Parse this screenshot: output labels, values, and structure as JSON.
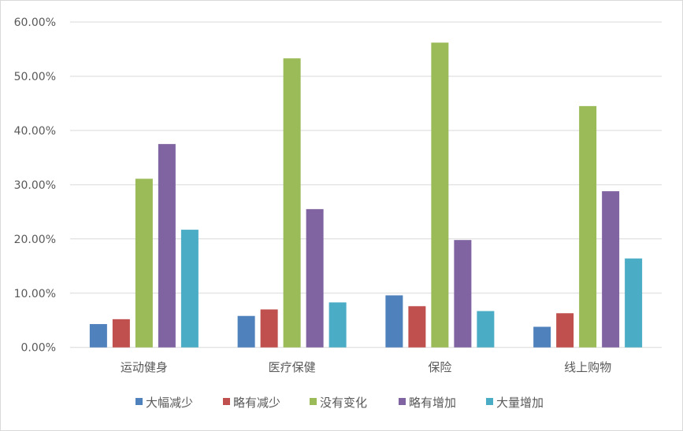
{
  "chart_data": {
    "type": "bar",
    "categories": [
      "运动健身",
      "医疗保健",
      "保险",
      "线上购物"
    ],
    "series": [
      {
        "name": "大幅减少",
        "color": "#4f81bd",
        "values": [
          4.3,
          5.8,
          9.6,
          3.8
        ]
      },
      {
        "name": "略有减少",
        "color": "#c0504d",
        "values": [
          5.2,
          7.0,
          7.6,
          6.3
        ]
      },
      {
        "name": "没有变化",
        "color": "#9bbb59",
        "values": [
          31.1,
          53.3,
          56.2,
          44.5
        ]
      },
      {
        "name": "略有增加",
        "color": "#8064a2",
        "values": [
          37.5,
          25.5,
          19.8,
          28.8
        ]
      },
      {
        "name": "大量增加",
        "color": "#4bacc6",
        "values": [
          21.7,
          8.3,
          6.7,
          16.4
        ]
      }
    ],
    "yticks": [
      "0.00%",
      "10.00%",
      "20.00%",
      "30.00%",
      "40.00%",
      "50.00%",
      "60.00%"
    ],
    "ylim": [
      0,
      60
    ],
    "unit": "%",
    "grid": true,
    "legend": "bottom"
  }
}
